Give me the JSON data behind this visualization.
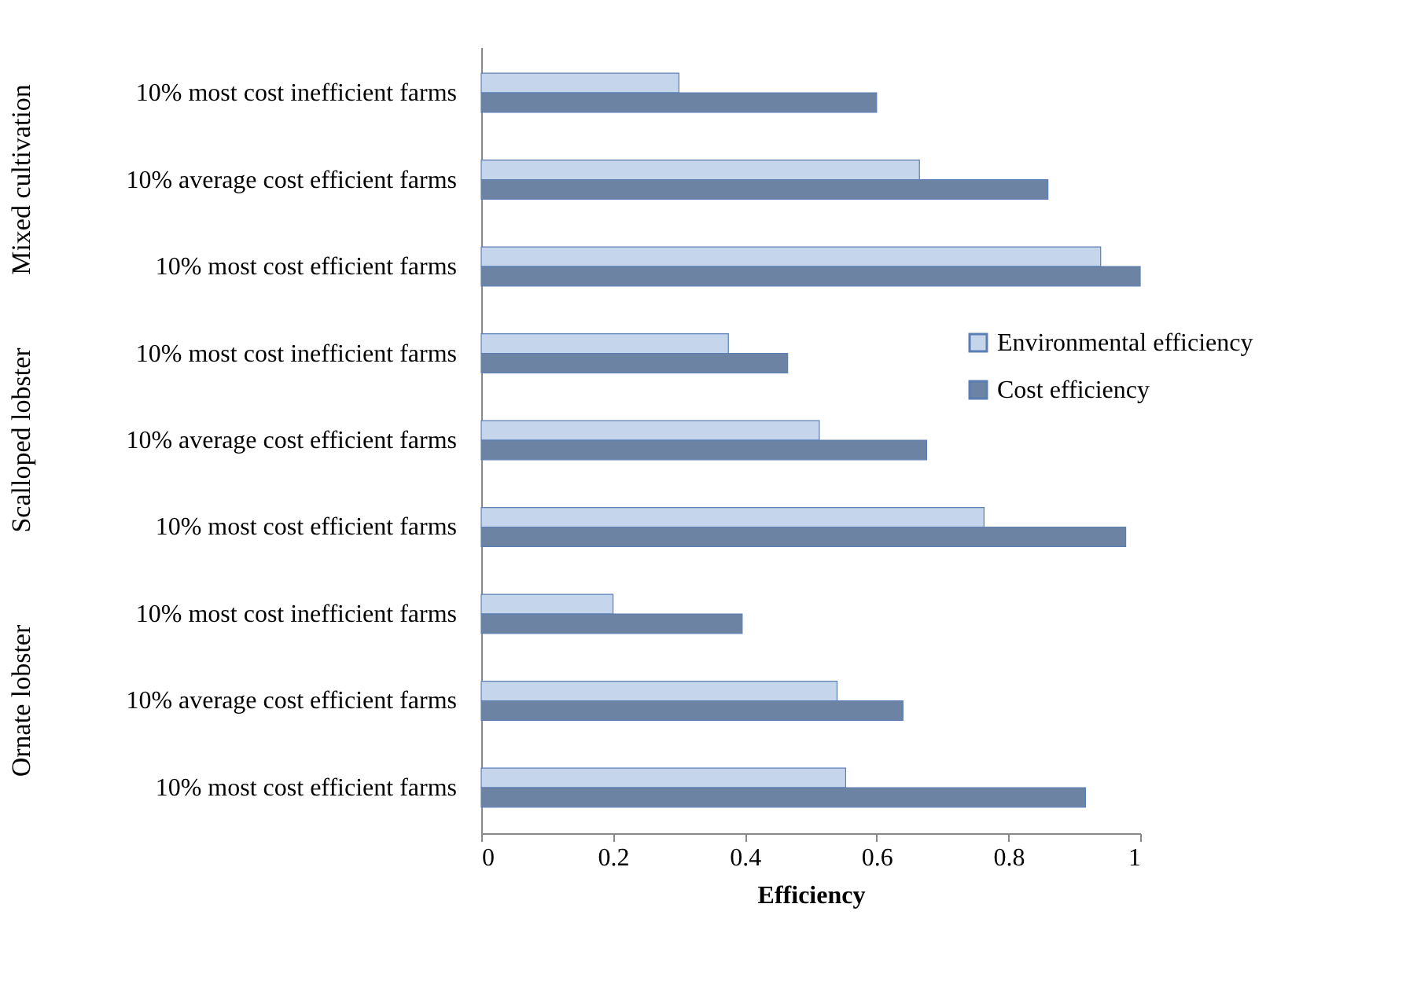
{
  "chart_data": {
    "type": "bar",
    "orientation": "horizontal",
    "xlabel": "Efficiency",
    "categories": [
      "10% most cost inefficient farms",
      "10% average cost efficient farms",
      "10% most cost efficient farms",
      "10% most cost inefficient farms",
      "10% average cost efficient farms",
      "10% most cost efficient farms",
      "10% most cost inefficient farms",
      "10% average cost efficient farms",
      "10% most cost efficient farms"
    ],
    "series": [
      {
        "name": "Environmental efficiency",
        "color": "#c5d5ec",
        "values": [
          0.3,
          0.665,
          0.94,
          0.375,
          0.513,
          0.763,
          0.2,
          0.54,
          0.553
        ]
      },
      {
        "name": "Cost efficiency",
        "color": "#6d83a3",
        "values": [
          0.6,
          0.86,
          1.0,
          0.465,
          0.676,
          0.978,
          0.396,
          0.64,
          0.917
        ]
      }
    ],
    "annotations": [
      "Mixed cultivation",
      "Scalloped lobster",
      "Ornate lobster"
    ],
    "xlim": [
      0,
      1
    ],
    "xticks": [
      0,
      0.2,
      0.4,
      0.6,
      0.8,
      1
    ],
    "legend": "right",
    "grid": false
  }
}
